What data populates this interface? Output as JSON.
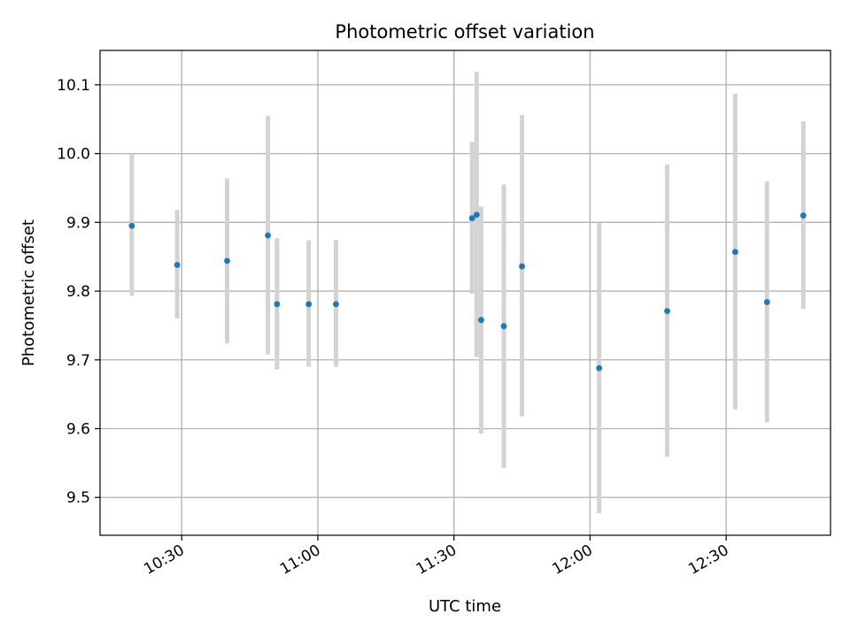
{
  "chart_data": {
    "type": "scatter",
    "title": "Photometric offset variation",
    "xlabel": "UTC time",
    "ylabel": "Photometric offset",
    "x_axis_type": "time",
    "xlim": [
      "10:12",
      "12:53"
    ],
    "ylim": [
      9.445,
      10.15
    ],
    "x_ticks": [
      "10:30",
      "11:00",
      "11:30",
      "12:00",
      "12:30"
    ],
    "y_ticks": [
      9.5,
      9.6,
      9.7,
      9.8,
      9.9,
      10.0,
      10.1
    ],
    "y_tick_labels": [
      "9.5",
      "9.6",
      "9.7",
      "9.8",
      "9.9",
      "10.0",
      "10.1"
    ],
    "grid": true,
    "legend": null,
    "colors": {
      "marker": "#1f77b4",
      "errorbar": "#d3d3d3",
      "grid": "#b0b0b0",
      "axes": "#000000"
    },
    "series": [
      {
        "points": [
          {
            "x": "10:19",
            "y": 9.895,
            "ymin": 9.793,
            "ymax": 10.0
          },
          {
            "x": "10:29",
            "y": 9.838,
            "ymin": 9.76,
            "ymax": 9.918
          },
          {
            "x": "10:40",
            "y": 9.844,
            "ymin": 9.724,
            "ymax": 9.964
          },
          {
            "x": "10:49",
            "y": 9.881,
            "ymin": 9.708,
            "ymax": 10.055
          },
          {
            "x": "10:51",
            "y": 9.781,
            "ymin": 9.686,
            "ymax": 9.877
          },
          {
            "x": "10:58",
            "y": 9.781,
            "ymin": 9.69,
            "ymax": 9.874
          },
          {
            "x": "11:04",
            "y": 9.781,
            "ymin": 9.69,
            "ymax": 9.874
          },
          {
            "x": "11:34",
            "y": 9.906,
            "ymin": 9.796,
            "ymax": 10.017
          },
          {
            "x": "11:35",
            "y": 9.911,
            "ymin": 9.704,
            "ymax": 10.119
          },
          {
            "x": "11:36",
            "y": 9.758,
            "ymin": 9.593,
            "ymax": 9.923
          },
          {
            "x": "11:41",
            "y": 9.749,
            "ymin": 9.543,
            "ymax": 9.955
          },
          {
            "x": "11:45",
            "y": 9.836,
            "ymin": 9.618,
            "ymax": 10.056
          },
          {
            "x": "12:02",
            "y": 9.688,
            "ymin": 9.477,
            "ymax": 9.899
          },
          {
            "x": "12:17",
            "y": 9.771,
            "ymin": 9.559,
            "ymax": 9.984
          },
          {
            "x": "12:32",
            "y": 9.857,
            "ymin": 9.628,
            "ymax": 10.087
          },
          {
            "x": "12:39",
            "y": 9.784,
            "ymin": 9.609,
            "ymax": 9.96
          },
          {
            "x": "12:47",
            "y": 9.91,
            "ymin": 9.774,
            "ymax": 10.047
          }
        ]
      }
    ]
  }
}
